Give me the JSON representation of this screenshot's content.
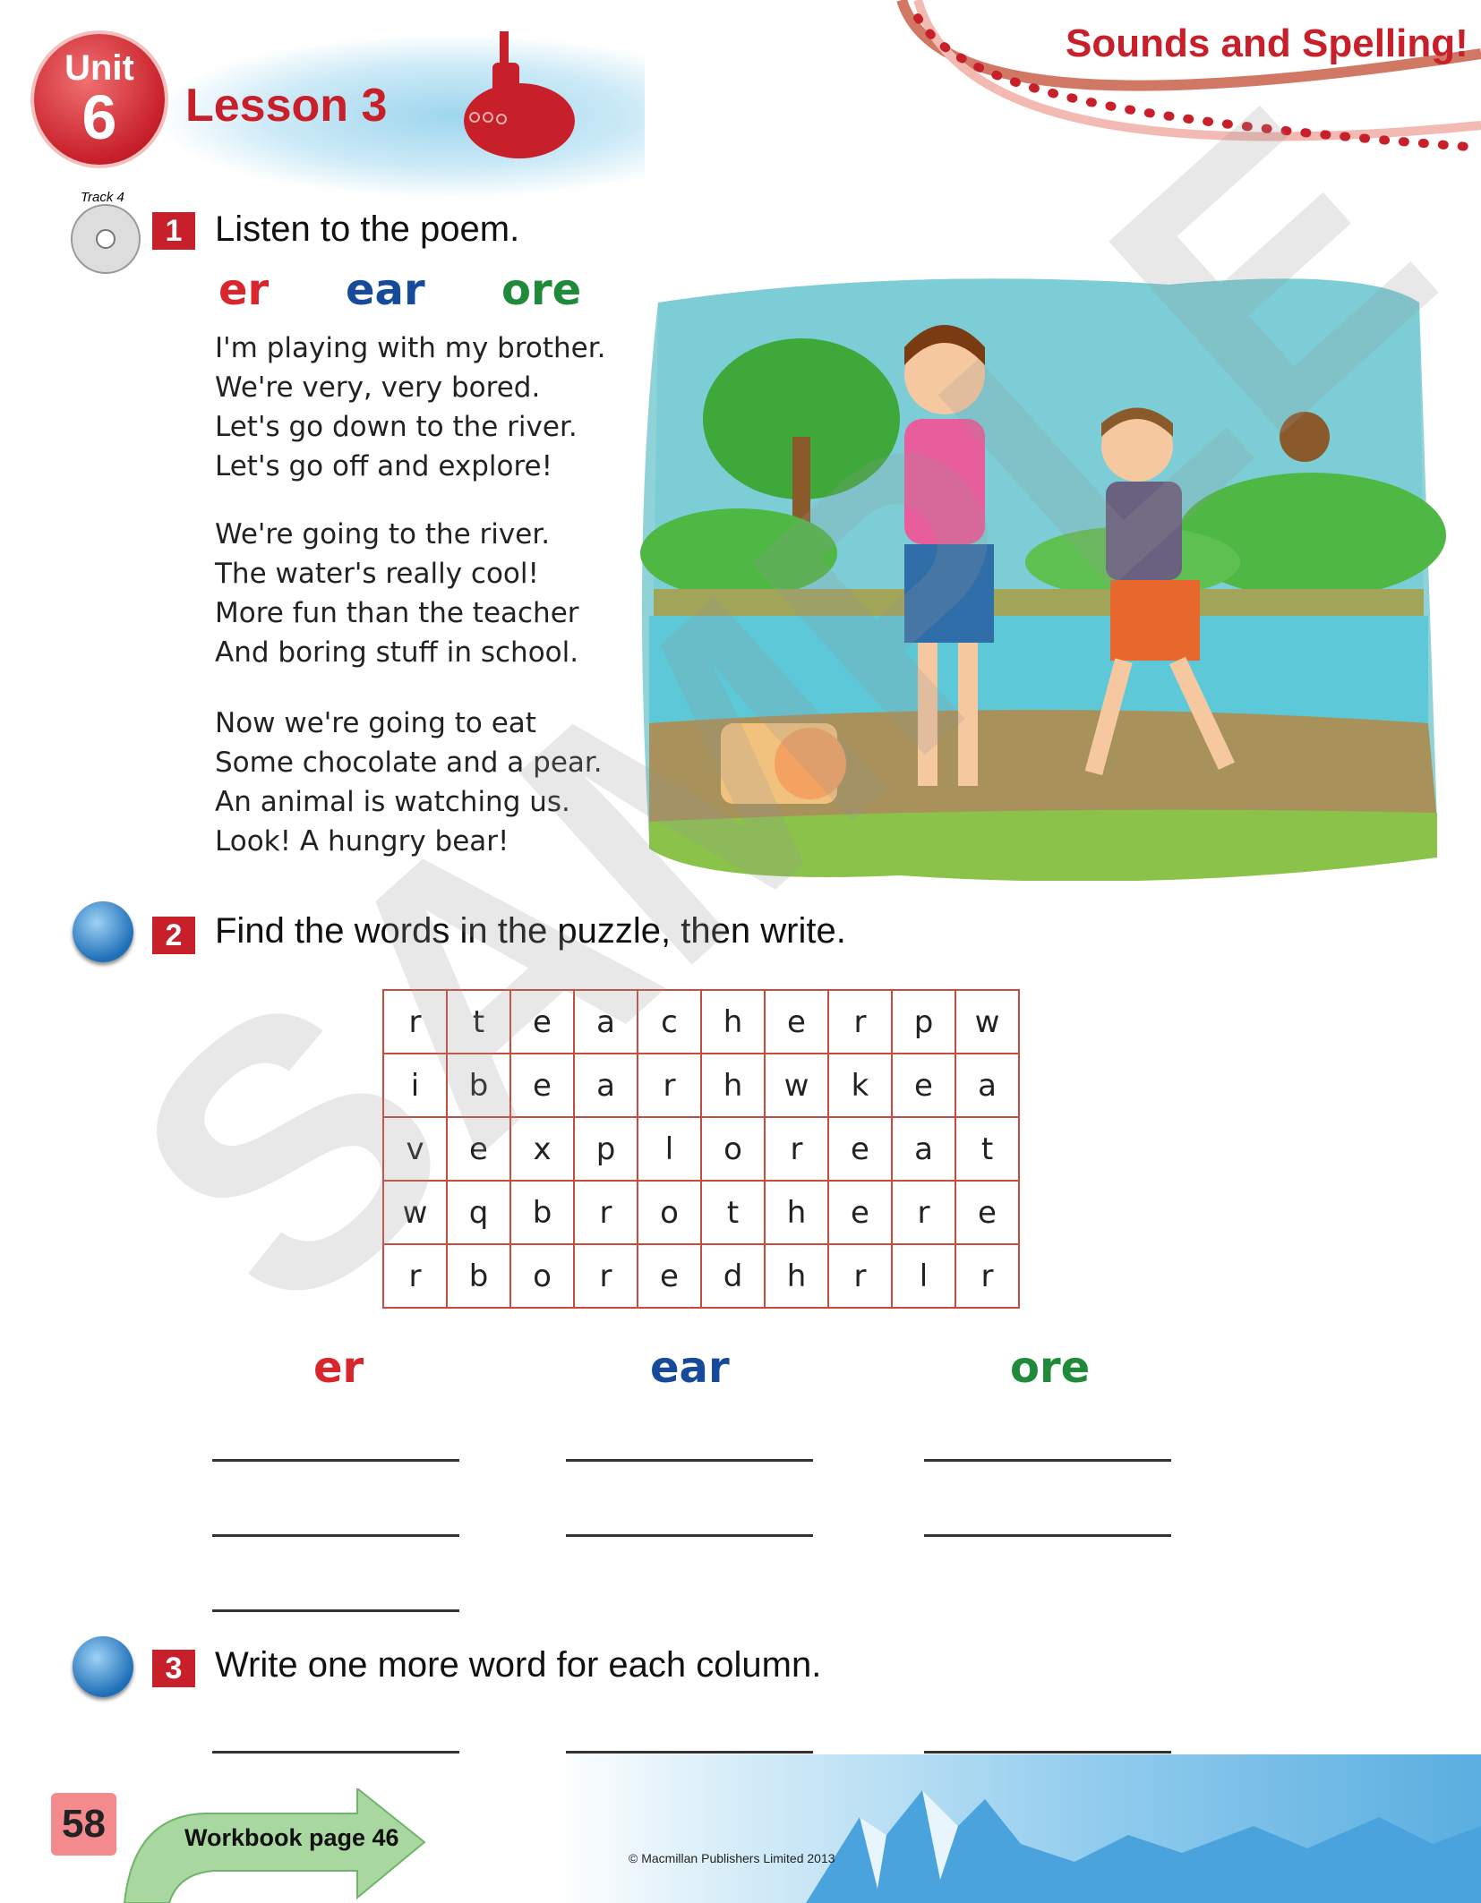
{
  "header": {
    "unit_label": "Unit",
    "unit_number": "6",
    "lesson": "Lesson 3",
    "section": "Sounds and Spelling!"
  },
  "exercise1": {
    "number": "1",
    "track": "Track 4",
    "title": "Listen to the poem.",
    "sounds": [
      "er",
      "ear",
      "ore"
    ],
    "stanzas": [
      [
        "I'm playing with my brother.",
        "We're very, very bored.",
        "Let's go down to the river.",
        "Let's go off and explore!"
      ],
      [
        "We're going to the river.",
        "The water's really cool!",
        "More fun than the teacher",
        "And boring stuff in school."
      ],
      [
        "Now we're going to eat",
        "Some chocolate and a pear.",
        "An animal is watching us.",
        "Look! A hungry bear!"
      ]
    ]
  },
  "exercise2": {
    "number": "2",
    "title": "Find the words in the puzzle, then write.",
    "grid": [
      [
        "r",
        "t",
        "e",
        "a",
        "c",
        "h",
        "e",
        "r",
        "p",
        "w"
      ],
      [
        "i",
        "b",
        "e",
        "a",
        "r",
        "h",
        "w",
        "k",
        "e",
        "a"
      ],
      [
        "v",
        "e",
        "x",
        "p",
        "l",
        "o",
        "r",
        "e",
        "a",
        "t"
      ],
      [
        "w",
        "q",
        "b",
        "r",
        "o",
        "t",
        "h",
        "e",
        "r",
        "e"
      ],
      [
        "r",
        "b",
        "o",
        "r",
        "e",
        "d",
        "h",
        "r",
        "l",
        "r"
      ]
    ],
    "columns": [
      "er",
      "ear",
      "ore"
    ]
  },
  "exercise3": {
    "number": "3",
    "title": "Write one more word for each column."
  },
  "footer": {
    "page_number": "58",
    "workbook": "Workbook page 46",
    "copyright": "© Macmillan Publishers Limited 2013"
  },
  "watermark": "SAMPLE",
  "colors": {
    "brand_red": "#c8202a",
    "er": "#d9262c",
    "ear": "#164a9b",
    "ore": "#1e8a3a"
  }
}
